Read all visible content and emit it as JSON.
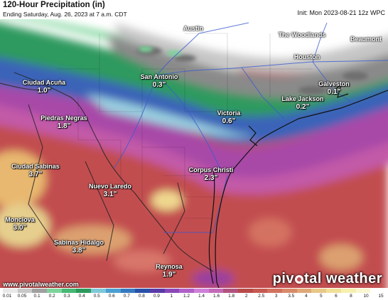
{
  "header": {
    "title": "120-Hour Precipitation (in)",
    "subtitle": "Ending Saturday, Aug. 26, 2023 at 7 a.m. CDT",
    "init": "Init: Mon 2023-08-21 12z WPC"
  },
  "cities": [
    {
      "id": "austin",
      "name": "Austin",
      "value": ""
    },
    {
      "id": "woodlands",
      "name": "The Woodlands",
      "value": ""
    },
    {
      "id": "beaumont",
      "name": "Beaumont",
      "value": ""
    },
    {
      "id": "houston",
      "name": "Houston",
      "value": ""
    },
    {
      "id": "san-antonio",
      "name": "San Antonio",
      "value": "0.3\""
    },
    {
      "id": "galveston",
      "name": "Galveston",
      "value": "0.1\""
    },
    {
      "id": "ciudad-acuna",
      "name": "Ciudad Acuña",
      "value": "1.0\""
    },
    {
      "id": "lake-jackson",
      "name": "Lake Jackson",
      "value": "0.2\""
    },
    {
      "id": "victoria",
      "name": "Victoria",
      "value": "0.6\""
    },
    {
      "id": "piedras-negras",
      "name": "Piedras Negras",
      "value": "1.8\""
    },
    {
      "id": "ciudad-sabinas",
      "name": "Ciudad Sabinas",
      "value": "3.7\""
    },
    {
      "id": "corpus-christi",
      "name": "Corpus Christi",
      "value": "2.3\""
    },
    {
      "id": "nuevo-laredo",
      "name": "Nuevo Laredo",
      "value": "3.1\""
    },
    {
      "id": "monclova",
      "name": "Monclova",
      "value": "3.0\""
    },
    {
      "id": "sabinas-hidalgo",
      "name": "Sabinas Hidalgo",
      "value": "3.8\""
    },
    {
      "id": "reynosa",
      "name": "Reynosa",
      "value": "1.9\""
    }
  ],
  "footer": {
    "site": "www.pivotalweather.com",
    "brand_a": "piv",
    "brand_b": "tal weather"
  },
  "scale": {
    "labels": [
      "0.01",
      "0.05",
      "0.1",
      "0.2",
      "0.3",
      "0.4",
      "0.5",
      "0.6",
      "0.7",
      "0.8",
      "0.9",
      "1",
      "1.2",
      "1.4",
      "1.6",
      "1.8",
      "2",
      "2.5",
      "3",
      "3.5",
      "4",
      "5",
      "6",
      "8",
      "10",
      "15"
    ],
    "colors": [
      "#e8e8e8",
      "#c8c8c8",
      "#a0a0a0",
      "#7cd49a",
      "#46b873",
      "#2c9a5c",
      "#7ec8d8",
      "#4aa0d0",
      "#3478c0",
      "#2850a8",
      "#5a3aa8",
      "#8a48b8",
      "#b060c8",
      "#d080d8",
      "#c46ab8",
      "#b2527e",
      "#b84a4a",
      "#c65a52",
      "#d2715e",
      "#d88a6a",
      "#e0a878",
      "#e8c888",
      "#f0e098",
      "#f6f0b0",
      "#faf6d0",
      "#ffffff"
    ]
  }
}
